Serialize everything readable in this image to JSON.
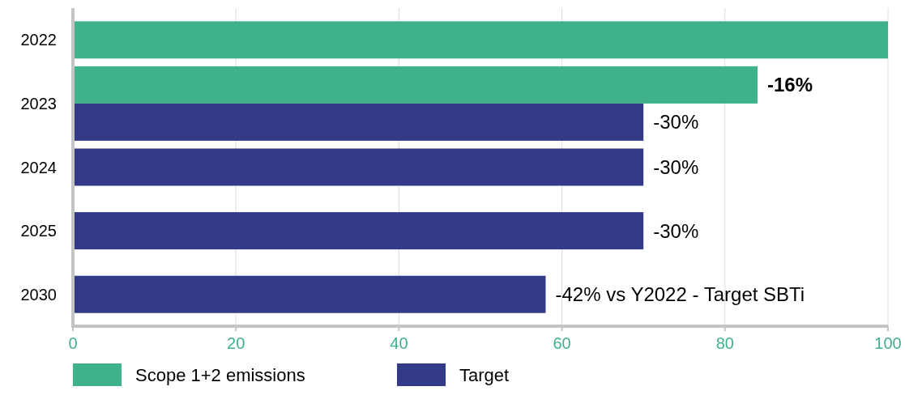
{
  "chart_data": {
    "type": "bar",
    "orientation": "horizontal",
    "categories": [
      "2022",
      "2023",
      "2024",
      "2025",
      "2030"
    ],
    "series": [
      {
        "name": "Scope 1+2 emissions",
        "color": "#3fb28a",
        "values": [
          100,
          84,
          null,
          null,
          null
        ]
      },
      {
        "name": "Target",
        "color": "#333a87",
        "values": [
          null,
          70,
          70,
          70,
          58
        ]
      }
    ],
    "annotations": [
      {
        "text": "-16%",
        "x": 84,
        "y": "2023"
      },
      {
        "text": "-30%",
        "x": 70,
        "y": "2023"
      },
      {
        "text": "-30%",
        "x": 70,
        "y": "2024"
      },
      {
        "text": "-30%",
        "x": 70,
        "y": "2025"
      },
      {
        "text": "-42% vs Y2022 - Target SBTi",
        "x": 58,
        "y": "2030"
      }
    ],
    "xlim": [
      0,
      100
    ],
    "xticks": [
      0,
      20,
      40,
      60,
      80,
      100
    ],
    "grid": "x",
    "legend": "bottom"
  }
}
